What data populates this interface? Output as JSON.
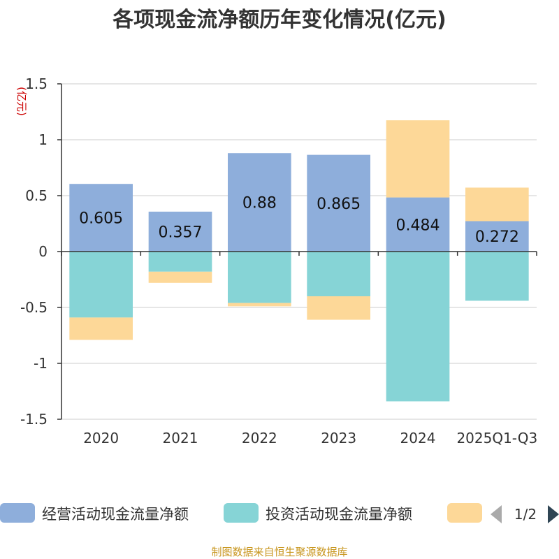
{
  "chart_data": {
    "type": "bar",
    "stacked": true,
    "title": "各项现金流净额历年变化情况(亿元)",
    "unit_label": "(亿元)",
    "categories": [
      "2020",
      "2021",
      "2022",
      "2023",
      "2024",
      "2025Q1-Q3"
    ],
    "ylim": [
      -1.5,
      1.5
    ],
    "yticks": [
      1.5,
      1,
      0.5,
      0,
      -0.5,
      -1,
      -1.5
    ],
    "ytick_labels": [
      "1.5",
      "1",
      "0.5",
      "0",
      "-0.5",
      "-1",
      "-1.5"
    ],
    "grid": true,
    "legend_position": "bottom",
    "series": [
      {
        "name": "经营活动现金流量净额",
        "color": "#8eaedb",
        "values": [
          0.605,
          0.357,
          0.88,
          0.865,
          0.484,
          0.272
        ],
        "show_labels": true
      },
      {
        "name": "投资活动现金流量净额",
        "color": "#86d4d6",
        "values": [
          -0.59,
          -0.18,
          -0.46,
          -0.4,
          -1.34,
          -0.44
        ],
        "show_labels": false
      },
      {
        "name": "",
        "color": "#fdd898",
        "values": [
          -0.2,
          -0.1,
          -0.03,
          -0.21,
          0.69,
          0.3
        ],
        "show_labels": false
      }
    ],
    "legend": {
      "page": "1/2"
    }
  },
  "source_note": "制图数据来自恒生聚源数据库",
  "colors": {
    "axis": "#333333",
    "grid": "#cccccc",
    "arrow_active": "#2f4554",
    "arrow_inactive": "#aaaaaa"
  }
}
